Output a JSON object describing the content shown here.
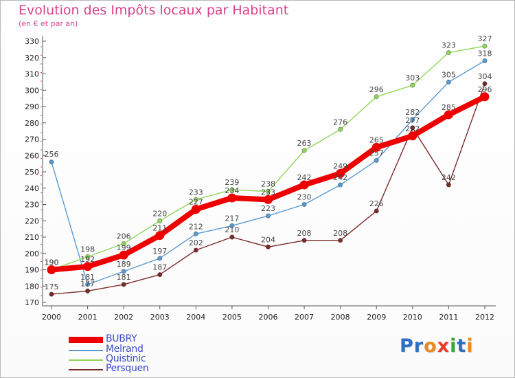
{
  "header": {
    "title": "Evolution des Impôts locaux par Habitant",
    "subtitle": "(en € et par an)"
  },
  "logo": {
    "text": "Proxiti",
    "letters": [
      "P",
      "r",
      "o",
      "x",
      "i",
      "t",
      "i"
    ],
    "colors": [
      "#2c6fc4",
      "#2c6fc4",
      "#e88a1c",
      "#e83a2a",
      "#3aa63a",
      "#2c6fc4",
      "#e88a1c"
    ]
  },
  "chart_data": {
    "type": "line",
    "title": "Evolution des Impôts locaux par Habitant",
    "subtitle": "(en € et par an)",
    "xlabel": "",
    "ylabel": "",
    "categories": [
      "2000",
      "2001",
      "2002",
      "2003",
      "2004",
      "2005",
      "2006",
      "2007",
      "2008",
      "2009",
      "2010",
      "2011",
      "2012"
    ],
    "ylim": [
      170,
      330
    ],
    "yticks": [
      170,
      180,
      190,
      200,
      210,
      220,
      230,
      240,
      250,
      260,
      270,
      280,
      290,
      300,
      310,
      320,
      330
    ],
    "grid": false,
    "legend_position": "bottom-left",
    "series": [
      {
        "name": "BUBRY",
        "color": "#ee0000",
        "emphasis": true,
        "values": [
          190,
          192,
          199,
          211,
          227,
          234,
          233,
          242,
          249,
          265,
          272,
          285,
          296
        ]
      },
      {
        "name": "Melrand",
        "color": "#5a9ad1",
        "values": [
          256,
          181,
          189,
          197,
          212,
          217,
          223,
          230,
          242,
          257,
          282,
          305,
          318
        ]
      },
      {
        "name": "Quistinic",
        "color": "#8fd65a",
        "values": [
          190,
          198,
          206,
          220,
          233,
          239,
          238,
          263,
          276,
          296,
          303,
          323,
          327
        ]
      },
      {
        "name": "Persquen",
        "color": "#7b2a2a",
        "values": [
          175,
          177,
          181,
          187,
          202,
          210,
          204,
          208,
          208,
          226,
          277,
          242,
          304
        ]
      }
    ]
  }
}
